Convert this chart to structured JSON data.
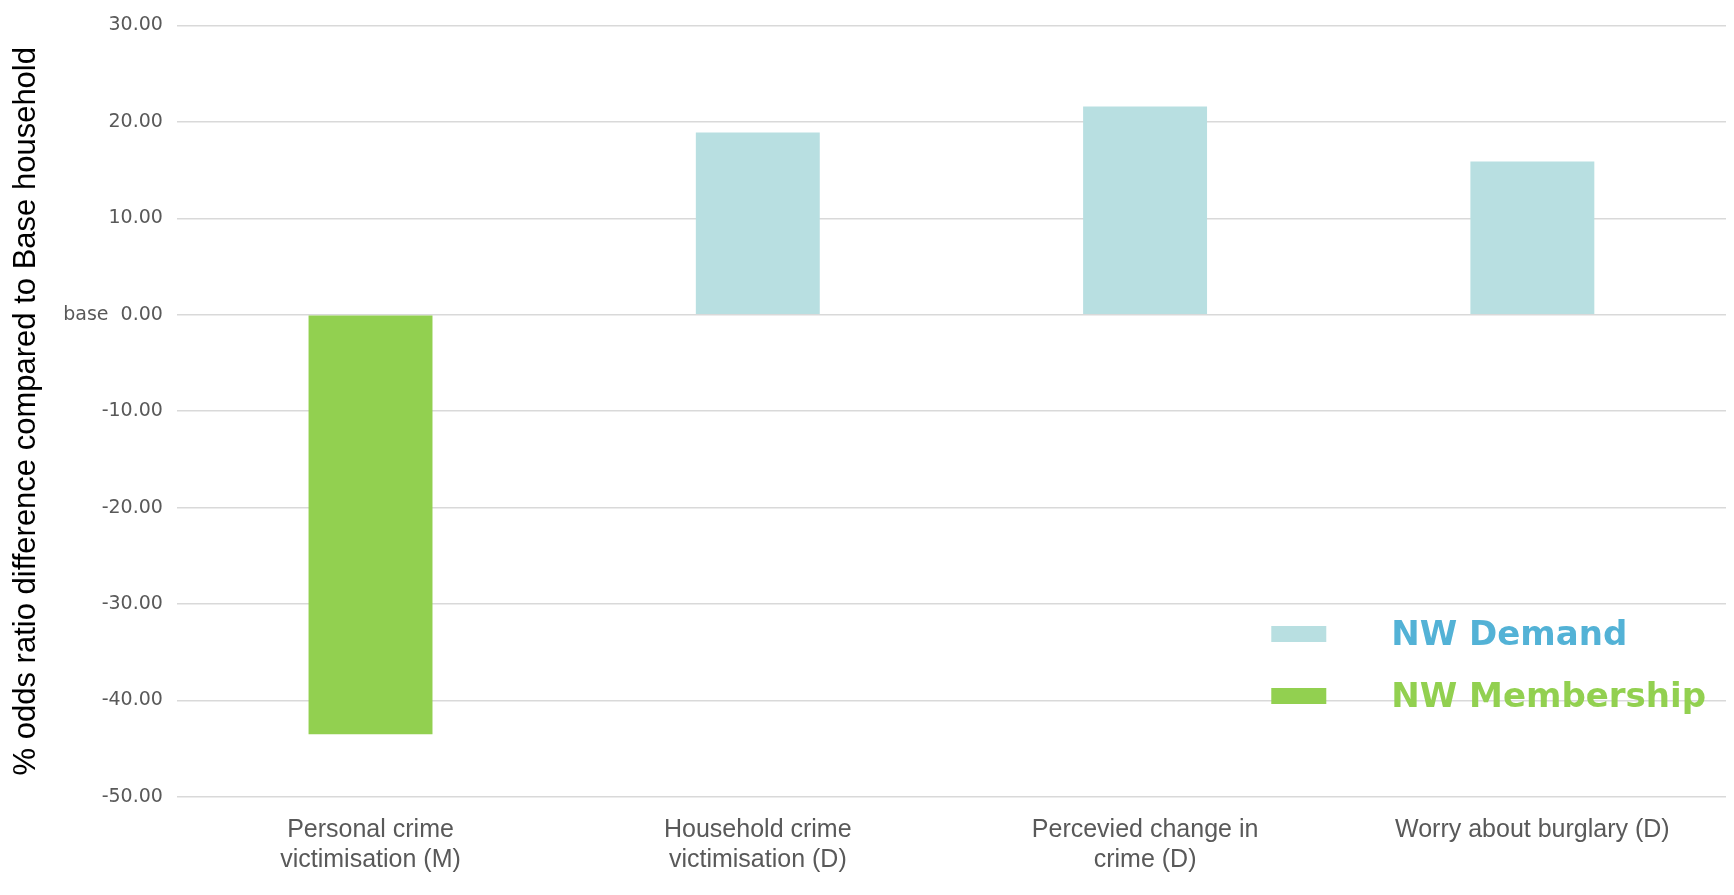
{
  "chart_data": {
    "type": "bar",
    "ylabel": "% odds ratio difference compared to Base household",
    "categories": [
      "Personal crime victimisation (M)",
      "Household crime victimisation (D)",
      "Percevied change in crime (D)",
      "Worry about burglary (D)"
    ],
    "series": [
      {
        "name": "NW Demand",
        "color": "#b8dfe1",
        "values": [
          null,
          18.9,
          21.6,
          15.9
        ]
      },
      {
        "name": "NW Membership",
        "color": "#92d050",
        "values": [
          -43.5,
          null,
          null,
          null
        ]
      }
    ],
    "ylim": [
      -50,
      30
    ],
    "yticks": [
      {
        "value": 30,
        "label": "30.00"
      },
      {
        "value": 20,
        "label": "20.00"
      },
      {
        "value": 10,
        "label": "10.00"
      },
      {
        "value": 0,
        "label": "base  0.00"
      },
      {
        "value": -10,
        "label": "-10.00"
      },
      {
        "value": -20,
        "label": "-20.00"
      },
      {
        "value": -30,
        "label": "-30.00"
      },
      {
        "value": -40,
        "label": "-40.00"
      },
      {
        "value": -50,
        "label": "-50.00"
      }
    ],
    "grid": "y",
    "legend": "bottom right"
  }
}
